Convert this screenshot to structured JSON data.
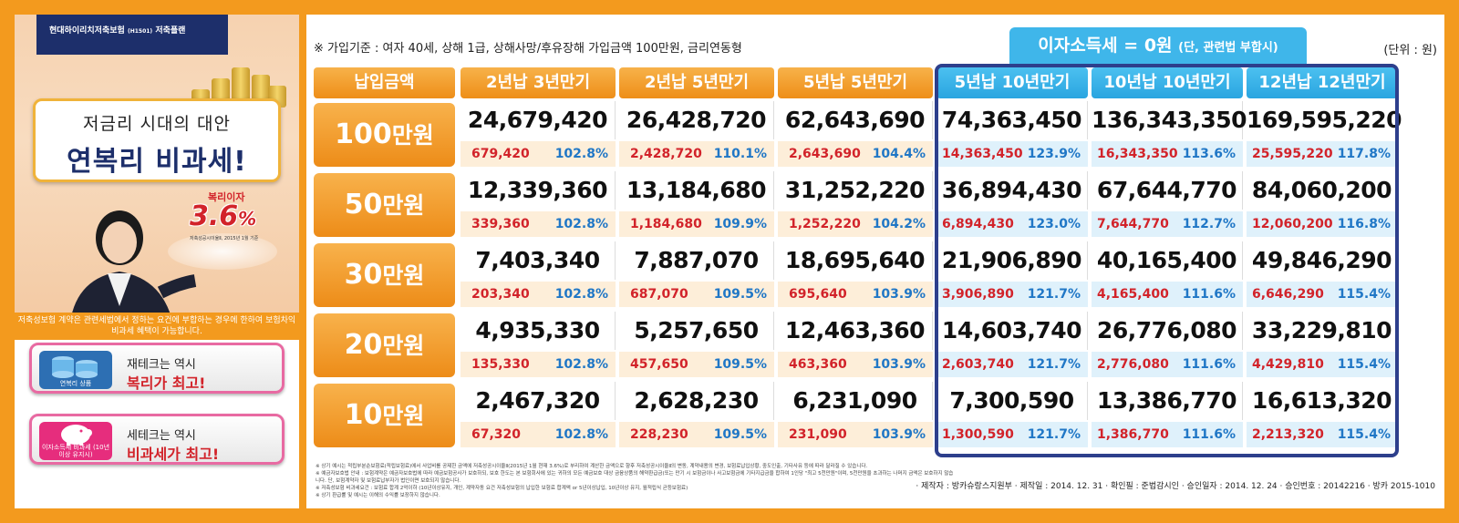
{
  "left_panel": {
    "brand": "현대하이리치저축보험",
    "brand_code": "(H1501)",
    "brand_suffix": "저축플랜",
    "slogan_line1": "저금리 시대의 대안",
    "slogan_line2": "연복리 비과세!",
    "rate_label": "복리이자",
    "rate_value": "3.6",
    "rate_unit": "%",
    "rate_note": "저축성공시이율Ⅱ, 2015년 1월 기준",
    "caption": "저축성보험 계약은 관련세법에서 정하는 요건에 부합하는 경우에 한하여 보험차익 비과세 혜택이 가능합니다.",
    "promos": [
      {
        "icon_label": "연복리 상품",
        "line1": "재테크는 역시",
        "line2": "복리가 최고!"
      },
      {
        "icon_label": "이자소득세 비과세 (10년 이상 유지시)",
        "line1": "세테크는 역시",
        "line2": "비과세가 최고!"
      }
    ]
  },
  "right_panel": {
    "criteria": "※ 가입기준 : 여자 40세, 상해 1급, 상해사망/후유장해 가입금액 100만원, 금리연동형",
    "tax_badge": "이자소득세 = 0원",
    "tax_badge_sub": "(단, 관련법 부합시)",
    "unit": "(단위 : 원)",
    "corner_header": "납입금액",
    "columns": [
      "2년납 3년만기",
      "2년납 5년만기",
      "5년납 5년만기",
      "5년납 10년만기",
      "10년납 10년만기",
      "12년납 12년만기"
    ],
    "rows": [
      {
        "label_num": "100",
        "label_unit": "만원",
        "values": [
          "24,679,420",
          "26,428,720",
          "62,643,690",
          "74,363,450",
          "136,343,350",
          "169,595,220"
        ],
        "interest": [
          "679,420",
          "2,428,720",
          "2,643,690",
          "14,363,450",
          "16,343,350",
          "25,595,220"
        ],
        "ratio": [
          "102.8%",
          "110.1%",
          "104.4%",
          "123.9%",
          "113.6%",
          "117.8%"
        ]
      },
      {
        "label_num": "50",
        "label_unit": "만원",
        "values": [
          "12,339,360",
          "13,184,680",
          "31,252,220",
          "36,894,430",
          "67,644,770",
          "84,060,200"
        ],
        "interest": [
          "339,360",
          "1,184,680",
          "1,252,220",
          "6,894,430",
          "7,644,770",
          "12,060,200"
        ],
        "ratio": [
          "102.8%",
          "109.9%",
          "104.2%",
          "123.0%",
          "112.7%",
          "116.8%"
        ]
      },
      {
        "label_num": "30",
        "label_unit": "만원",
        "values": [
          "7,403,340",
          "7,887,070",
          "18,695,640",
          "21,906,890",
          "40,165,400",
          "49,846,290"
        ],
        "interest": [
          "203,340",
          "687,070",
          "695,640",
          "3,906,890",
          "4,165,400",
          "6,646,290"
        ],
        "ratio": [
          "102.8%",
          "109.5%",
          "103.9%",
          "121.7%",
          "111.6%",
          "115.4%"
        ]
      },
      {
        "label_num": "20",
        "label_unit": "만원",
        "values": [
          "4,935,330",
          "5,257,650",
          "12,463,360",
          "14,603,740",
          "26,776,080",
          "33,229,810"
        ],
        "interest": [
          "135,330",
          "457,650",
          "463,360",
          "2,603,740",
          "2,776,080",
          "4,429,810"
        ],
        "ratio": [
          "102.8%",
          "109.5%",
          "103.9%",
          "121.7%",
          "111.6%",
          "115.4%"
        ]
      },
      {
        "label_num": "10",
        "label_unit": "만원",
        "values": [
          "2,467,320",
          "2,628,230",
          "6,231,090",
          "7,300,590",
          "13,386,770",
          "16,613,320"
        ],
        "interest": [
          "67,320",
          "228,230",
          "231,090",
          "1,300,590",
          "1,386,770",
          "2,213,320"
        ],
        "ratio": [
          "102.8%",
          "109.5%",
          "103.9%",
          "121.7%",
          "111.6%",
          "115.4%"
        ]
      }
    ],
    "fineprint": [
      "※ 상기 예시는 적립부분순보험료(적립보험료)에서 사업비를 공제한 금액에 저축성공시이율Ⅱ(2015년 1월 현재 3.6%)로 부리하여 계산한 금액으로 향후 저축성공시이율Ⅱ의 변동, 계약내용의 변경, 보험료납입상황, 중도인출, 기타사유 등에 따라 달라질 수 있습니다.",
      "※ 예금자보호법 안내 : 보험계약은 예금자보호법에 따라 예금보험공사가 보호하되, 보호 한도는 본 보험회사에 있는 귀하의 모든 예금보호 대상 금융상품의 해약환급금(또는 만기 시 보험금이나 사고보험금에 기타지급금을 합하여 1인당 \"최고 5천만원\"이며, 5천만원을 초과하는 나머지 금액은 보호하지 않습니다. 단, 보험계약자 및 보험료납부자가 법인이면 보호되지 않습니다.",
      "※ 저축성보험 비과세요건 : 보험료 합계 2억이하 (10년이상유지, 개인, 계약자동 요건 저축성보험의 납입한 보험료 합계액 or 5년이상납입, 10년이상 유지, 월적립식 균등보험료)",
      "※ 상기 환급률 및 예시는 이해의 수익률 보장하지 않습니다."
    ],
    "footer_meta": "· 제작자 : 방카슈랑스지원부  · 제작일 : 2014. 12. 31  · 확인필 : 준법감시인  · 승인일자 : 2014. 12. 24  · 승인번호 : 20142216  · 방카 2015-1010"
  }
}
